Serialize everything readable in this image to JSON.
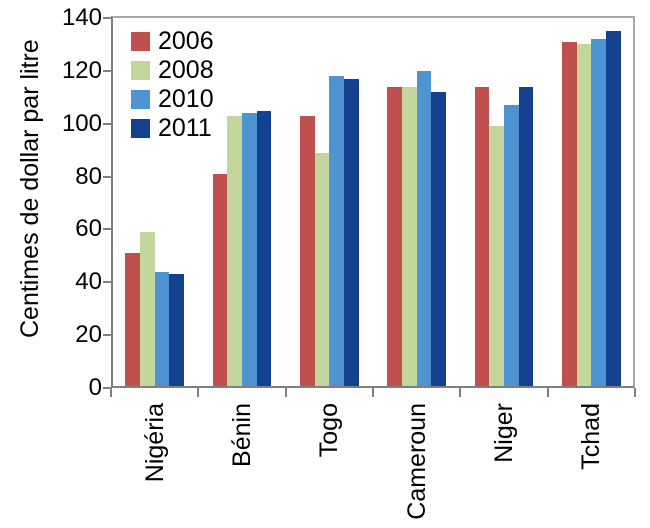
{
  "chart_data": {
    "type": "bar",
    "title": "",
    "xlabel": "",
    "ylabel": "Centimes de dollar par litre",
    "ylim": [
      0,
      140
    ],
    "yticks": [
      0,
      20,
      40,
      60,
      80,
      100,
      120,
      140
    ],
    "grid": false,
    "legend_position": "top-left-inside",
    "categories": [
      "Nigéria",
      "Bénin",
      "Togo",
      "Cameroun",
      "Niger",
      "Tchad"
    ],
    "series": [
      {
        "name": "2006",
        "color": "#C0504D",
        "values": [
          51,
          81,
          103,
          114,
          114,
          131
        ]
      },
      {
        "name": "2008",
        "color": "#C3D69B",
        "values": [
          59,
          103,
          89,
          114,
          99,
          130
        ]
      },
      {
        "name": "2010",
        "color": "#4F94D2",
        "values": [
          44,
          104,
          118,
          120,
          107,
          132
        ]
      },
      {
        "name": "2011",
        "color": "#14418F",
        "values": [
          43,
          105,
          117,
          112,
          114,
          135
        ]
      }
    ]
  },
  "colors": {
    "axis": "#7f7f7f",
    "frame": "#a8a8a8",
    "text": "#000000",
    "background": "#ffffff"
  }
}
